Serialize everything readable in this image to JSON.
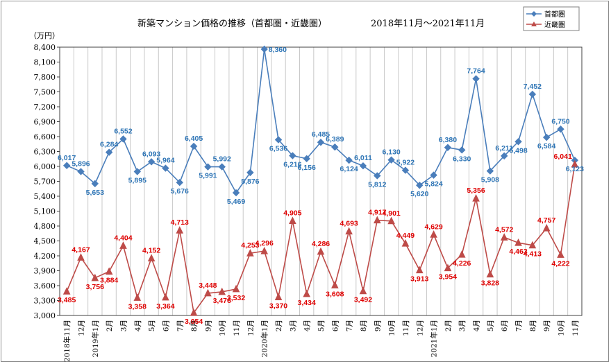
{
  "chart_data": {
    "type": "line",
    "title": "新築マンション価格の推移（首都圏・近畿圏）",
    "subtitle": "2018年11月～2021年11月",
    "ylabel": "（万円）",
    "ylim": [
      3000,
      8400
    ],
    "yticks": [
      "3,000",
      "3,300",
      "3,600",
      "3,900",
      "4,200",
      "4,500",
      "4,800",
      "5,100",
      "5,400",
      "5,700",
      "6,000",
      "6,300",
      "6,600",
      "6,900",
      "7,200",
      "7,500",
      "7,800",
      "8,100",
      "8,400"
    ],
    "categories": [
      "2018年11月",
      "12月",
      "2019年1月",
      "2月",
      "3月",
      "4月",
      "5月",
      "6月",
      "7月",
      "8月",
      "9月",
      "10月",
      "11月",
      "12月",
      "2020年1月",
      "2月",
      "3月",
      "4月",
      "5月",
      "6月",
      "7月",
      "8月",
      "9月",
      "10月",
      "11月",
      "12月",
      "2021年1月",
      "2月",
      "3月",
      "4月",
      "5月",
      "6月",
      "7月",
      "8月",
      "9月",
      "10月",
      "11月"
    ],
    "series": [
      {
        "name": "首都圏",
        "color": "#4a7ebb",
        "label_color": "#2e75b6",
        "marker": "diamond",
        "values": [
          6017,
          5896,
          5653,
          6284,
          6552,
          5895,
          6093,
          5964,
          5676,
          6405,
          5991,
          5992,
          5469,
          5876,
          8360,
          6536,
          6216,
          6156,
          6485,
          6389,
          6124,
          6011,
          5812,
          6130,
          5922,
          5620,
          5824,
          6380,
          6330,
          7764,
          5908,
          6211,
          6498,
          7452,
          6584,
          6750,
          6123
        ],
        "labels": [
          "6,017",
          "5,896",
          "5,653",
          "6,284",
          "6,552",
          "5,895",
          "6,093",
          "5,964",
          "5,676",
          "6,405",
          "5,991",
          "5,992",
          "5,469",
          "5,876",
          "8,360",
          "6,536",
          "6,216",
          "6,156",
          "6,485",
          "6,389",
          "6,124",
          "6,011",
          "5,812",
          "6,130",
          "5,922",
          "5,620",
          "5,824",
          "6,380",
          "6,330",
          "7,764",
          "5,908",
          "6,211",
          "6,498",
          "7,452",
          "6,584",
          "6,750",
          "6,123"
        ]
      },
      {
        "name": "近畿圏",
        "color": "#be4b48",
        "label_color": "#e00000",
        "marker": "triangle",
        "values": [
          3485,
          4167,
          3756,
          3884,
          4404,
          3358,
          4152,
          3364,
          4713,
          3054,
          3448,
          3476,
          3532,
          4253,
          4296,
          3370,
          4905,
          3434,
          4286,
          3608,
          4693,
          3492,
          4917,
          4901,
          4449,
          3913,
          4629,
          3954,
          4226,
          5356,
          3828,
          4572,
          4463,
          4413,
          4757,
          4222,
          6041
        ],
        "labels": [
          "3,485",
          "4,167",
          "3,756",
          "3,884",
          "4,404",
          "3,358",
          "4,152",
          "3,364",
          "4,713",
          "3,054",
          "3,448",
          "3,476",
          "3,532",
          "4,253",
          "4,296",
          "3,370",
          "4,905",
          "3,434",
          "4,286",
          "3,608",
          "4,693",
          "3,492",
          "4,917",
          "4,901",
          "4,449",
          "3,913",
          "4,629",
          "3,954",
          "4,226",
          "5,356",
          "3,828",
          "4,572",
          "4,463",
          "4,413",
          "4,757",
          "4,222",
          "6,041"
        ]
      }
    ],
    "legend": "top-right",
    "grid": true
  }
}
